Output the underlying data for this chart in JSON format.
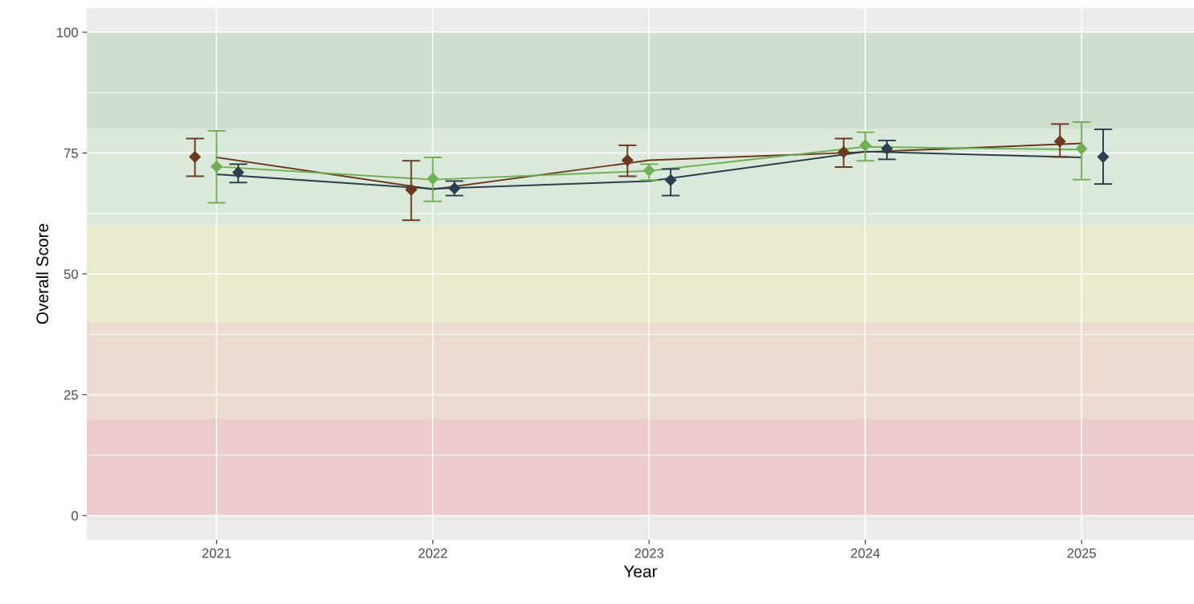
{
  "chart_data": {
    "type": "line",
    "xlabel": "Year",
    "ylabel": "Overall Score",
    "xlim": [
      2020.4,
      2025.52
    ],
    "xticks": [
      2021,
      2022,
      2023,
      2024,
      2025
    ],
    "ylim": [
      -5,
      105
    ],
    "yticks": [
      0,
      25,
      50,
      75,
      100
    ],
    "grid": true,
    "marker": "diamond",
    "bands": [
      {
        "axis": "y",
        "from": 0,
        "to": 20,
        "color": "#ebcbce"
      },
      {
        "axis": "y",
        "from": 20,
        "to": 40,
        "color": "#ebdbd0"
      },
      {
        "axis": "y",
        "from": 40,
        "to": 60,
        "color": "#e9ebcc"
      },
      {
        "axis": "y",
        "from": 60,
        "to": 80,
        "color": "#dbe9da"
      },
      {
        "axis": "y",
        "from": 80,
        "to": 100,
        "color": "#cfdfcf"
      }
    ],
    "series": [
      {
        "color": "#6b3a1e",
        "marker": "none",
        "x": [
          2021,
          2022,
          2023,
          2024,
          2025
        ],
        "values": [
          74.1,
          67.5,
          73.5,
          75.2,
          77.0
        ]
      },
      {
        "color": "#6fb055",
        "marker": "none",
        "x": [
          2021,
          2022,
          2023,
          2024,
          2025
        ],
        "values": [
          72.2,
          69.5,
          71.3,
          76.3,
          75.7
        ]
      },
      {
        "color": "#2c3e50",
        "marker": "none",
        "x": [
          2021,
          2022,
          2023,
          2024,
          2025
        ],
        "values": [
          70.6,
          67.6,
          69.2,
          75.3,
          74.1
        ]
      },
      {
        "type": "scatter",
        "color": "#6b3a1e",
        "x": [
          2020.9,
          2021.9,
          2022.9,
          2023.9,
          2024.9
        ],
        "values": [
          74.2,
          67.4,
          73.5,
          75.2,
          77.4
        ],
        "errors": [
          [
            70.2,
            78.0
          ],
          [
            61.1,
            73.4
          ],
          [
            70.2,
            76.6
          ],
          [
            72.1,
            78.0
          ],
          [
            74.2,
            81.0
          ]
        ]
      },
      {
        "type": "scatter",
        "color": "#6fb055",
        "x": [
          2021,
          2022,
          2023,
          2024,
          2025
        ],
        "values": [
          72.2,
          69.7,
          71.4,
          76.6,
          75.9
        ],
        "errors": [
          [
            64.7,
            79.6
          ],
          [
            65.0,
            74.1
          ],
          [
            69.4,
            72.7
          ],
          [
            73.4,
            79.3
          ],
          [
            69.5,
            81.4
          ]
        ]
      },
      {
        "type": "scatter",
        "color": "#2c3e50",
        "x": [
          2021.1,
          2022.1,
          2023.1,
          2024.1,
          2025.1
        ],
        "values": [
          71.0,
          67.7,
          69.4,
          75.9,
          74.2
        ],
        "errors": [
          [
            68.9,
            72.7
          ],
          [
            66.2,
            69.2
          ],
          [
            66.2,
            71.7
          ],
          [
            73.7,
            77.6
          ],
          [
            68.6,
            79.9
          ]
        ]
      }
    ]
  }
}
